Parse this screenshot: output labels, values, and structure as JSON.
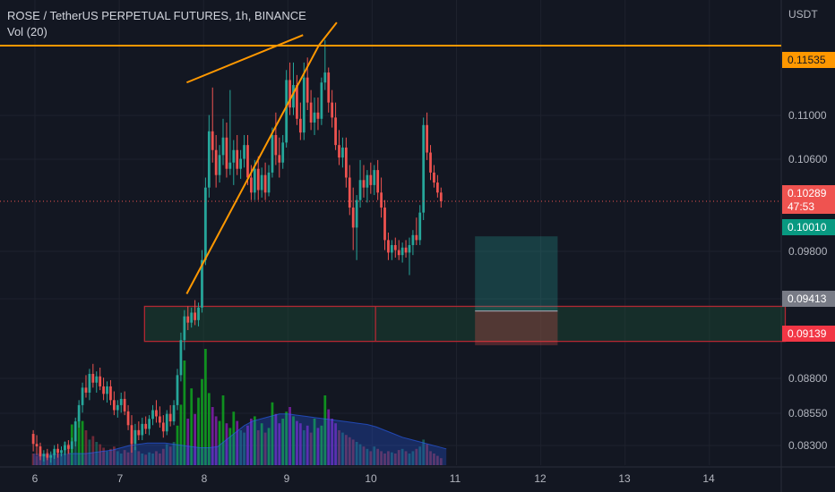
{
  "header": {
    "symbol_line": "ROSE / TetherUS PERPETUAL FUTURES, 1h, BINANCE",
    "indicator_line": "Vol (20)"
  },
  "axis": {
    "currency": "USDT",
    "price_ticks": [
      "0.11000",
      "0.10600",
      "0.09800",
      "0.09413",
      "0.08800",
      "0.08550",
      "0.08300"
    ],
    "date_ticks": [
      "6",
      "7",
      "8",
      "9",
      "10",
      "11",
      "12",
      "13",
      "14"
    ]
  },
  "price_labels": {
    "resistance": "0.11535",
    "current": "0.10289",
    "countdown": "47:53",
    "target": "0.10010",
    "entry": "0.09413",
    "stop": "0.09139"
  },
  "colors": {
    "background": "#131722",
    "up": "#26a69a",
    "down": "#ef5350",
    "drawing": "#ff9800",
    "zone": "#b22833",
    "volume_ma": "#2962ff",
    "volume_up_high": "#0f9d1f",
    "volume_down_high": "#7b1fa2"
  },
  "chart_data": {
    "type": "candlestick",
    "interval": "1h",
    "x_start_day": 5.98,
    "x_step_days": 0.0417,
    "ylim": [
      0.0818,
      0.119
    ],
    "ohlc": [
      [
        0.0843,
        0.0846,
        0.0829,
        0.0835
      ],
      [
        0.0835,
        0.0842,
        0.0826,
        0.0833
      ],
      [
        0.0833,
        0.0836,
        0.0822,
        0.0825
      ],
      [
        0.0825,
        0.083,
        0.0821,
        0.0827
      ],
      [
        0.0827,
        0.0831,
        0.0822,
        0.0824
      ],
      [
        0.0824,
        0.0829,
        0.082,
        0.0826
      ],
      [
        0.0826,
        0.0834,
        0.0823,
        0.0831
      ],
      [
        0.0831,
        0.0835,
        0.0824,
        0.0828
      ],
      [
        0.0828,
        0.0833,
        0.0825,
        0.083
      ],
      [
        0.083,
        0.0837,
        0.0826,
        0.0834
      ],
      [
        0.0834,
        0.0838,
        0.0827,
        0.0831
      ],
      [
        0.0831,
        0.084,
        0.0828,
        0.0837
      ],
      [
        0.0837,
        0.0856,
        0.0833,
        0.0853
      ],
      [
        0.0853,
        0.087,
        0.0848,
        0.0866
      ],
      [
        0.0866,
        0.0884,
        0.086,
        0.088
      ],
      [
        0.088,
        0.089,
        0.0872,
        0.0876
      ],
      [
        0.0876,
        0.0895,
        0.087,
        0.0891
      ],
      [
        0.0891,
        0.0899,
        0.088,
        0.0884
      ],
      [
        0.0884,
        0.0893,
        0.0876,
        0.0889
      ],
      [
        0.0889,
        0.0896,
        0.0878,
        0.0881
      ],
      [
        0.0881,
        0.0888,
        0.087,
        0.0875
      ],
      [
        0.0875,
        0.0885,
        0.0868,
        0.0881
      ],
      [
        0.0881,
        0.0886,
        0.0866,
        0.087
      ],
      [
        0.087,
        0.0877,
        0.0858,
        0.0862
      ],
      [
        0.0862,
        0.087,
        0.0856,
        0.0866
      ],
      [
        0.0866,
        0.0876,
        0.086,
        0.0871
      ],
      [
        0.0871,
        0.0877,
        0.0858,
        0.0861
      ],
      [
        0.0861,
        0.0866,
        0.0846,
        0.085
      ],
      [
        0.085,
        0.0858,
        0.0828,
        0.0835
      ],
      [
        0.0835,
        0.0851,
        0.083,
        0.0846
      ],
      [
        0.0846,
        0.0853,
        0.0838,
        0.0842
      ],
      [
        0.0842,
        0.0856,
        0.0838,
        0.0851
      ],
      [
        0.0851,
        0.0857,
        0.0843,
        0.0847
      ],
      [
        0.0847,
        0.0858,
        0.0842,
        0.0855
      ],
      [
        0.0855,
        0.0866,
        0.085,
        0.0862
      ],
      [
        0.0862,
        0.087,
        0.0852,
        0.0857
      ],
      [
        0.0857,
        0.0865,
        0.0848,
        0.0852
      ],
      [
        0.0852,
        0.0858,
        0.084,
        0.0845
      ],
      [
        0.0845,
        0.0862,
        0.0842,
        0.0859
      ],
      [
        0.0859,
        0.0866,
        0.0849,
        0.0853
      ],
      [
        0.0853,
        0.087,
        0.085,
        0.0866
      ],
      [
        0.0866,
        0.0895,
        0.0862,
        0.089
      ],
      [
        0.089,
        0.0924,
        0.0885,
        0.0918
      ],
      [
        0.0918,
        0.0942,
        0.091,
        0.0937
      ],
      [
        0.0937,
        0.0945,
        0.0926,
        0.0932
      ],
      [
        0.0932,
        0.0944,
        0.0928,
        0.094
      ],
      [
        0.094,
        0.095,
        0.093,
        0.0934
      ],
      [
        0.0934,
        0.0948,
        0.0929,
        0.0944
      ],
      [
        0.0944,
        0.099,
        0.094,
        0.0982
      ],
      [
        0.0982,
        0.1048,
        0.0978,
        0.104
      ],
      [
        0.104,
        0.1098,
        0.1032,
        0.1085
      ],
      [
        0.1085,
        0.112,
        0.106,
        0.107
      ],
      [
        0.107,
        0.1082,
        0.104,
        0.105
      ],
      [
        0.105,
        0.1074,
        0.1044,
        0.1066
      ],
      [
        0.1066,
        0.1095,
        0.1058,
        0.108
      ],
      [
        0.108,
        0.1092,
        0.1048,
        0.1055
      ],
      [
        0.1055,
        0.1118,
        0.105,
        0.106
      ],
      [
        0.106,
        0.1078,
        0.1042,
        0.107
      ],
      [
        0.107,
        0.1082,
        0.105,
        0.1055
      ],
      [
        0.1055,
        0.107,
        0.1047,
        0.1063
      ],
      [
        0.1063,
        0.1082,
        0.1056,
        0.1074
      ],
      [
        0.1074,
        0.1082,
        0.1042,
        0.1048
      ],
      [
        0.1048,
        0.1058,
        0.103,
        0.1036
      ],
      [
        0.1036,
        0.1062,
        0.103,
        0.1055
      ],
      [
        0.1055,
        0.1065,
        0.103,
        0.1038
      ],
      [
        0.1038,
        0.1056,
        0.1032,
        0.105
      ],
      [
        0.105,
        0.106,
        0.103,
        0.1036
      ],
      [
        0.1036,
        0.1058,
        0.1033,
        0.1052
      ],
      [
        0.1052,
        0.1088,
        0.1048,
        0.1082
      ],
      [
        0.1082,
        0.11,
        0.1058,
        0.1066
      ],
      [
        0.1066,
        0.108,
        0.1048,
        0.106
      ],
      [
        0.106,
        0.1082,
        0.1055,
        0.1076
      ],
      [
        0.1076,
        0.1134,
        0.1072,
        0.1126
      ],
      [
        0.1126,
        0.114,
        0.1098,
        0.1104
      ],
      [
        0.1104,
        0.114,
        0.1098,
        0.1122
      ],
      [
        0.1122,
        0.113,
        0.109,
        0.1095
      ],
      [
        0.1095,
        0.1108,
        0.1078,
        0.1084
      ],
      [
        0.1084,
        0.114,
        0.1078,
        0.1128
      ],
      [
        0.1128,
        0.1144,
        0.1102,
        0.1108
      ],
      [
        0.1108,
        0.1118,
        0.1086,
        0.1092
      ],
      [
        0.1092,
        0.1112,
        0.1082,
        0.11
      ],
      [
        0.11,
        0.1112,
        0.1086,
        0.1095
      ],
      [
        0.1095,
        0.1128,
        0.109,
        0.1124
      ],
      [
        0.1124,
        0.1158,
        0.1118,
        0.1132
      ],
      [
        0.1132,
        0.1136,
        0.11,
        0.1108
      ],
      [
        0.1108,
        0.1118,
        0.1088,
        0.1096
      ],
      [
        0.1096,
        0.1108,
        0.107,
        0.1074
      ],
      [
        0.1074,
        0.1086,
        0.1058,
        0.1064
      ],
      [
        0.1064,
        0.108,
        0.1056,
        0.1072
      ],
      [
        0.1072,
        0.108,
        0.104,
        0.1048
      ],
      [
        0.1048,
        0.1058,
        0.1018,
        0.1024
      ],
      [
        0.1024,
        0.104,
        0.099,
        0.1008
      ],
      [
        0.1008,
        0.1034,
        0.0982,
        0.103
      ],
      [
        0.103,
        0.1062,
        0.1024,
        0.1046
      ],
      [
        0.1046,
        0.1058,
        0.1032,
        0.104
      ],
      [
        0.104,
        0.1054,
        0.1028,
        0.105
      ],
      [
        0.105,
        0.106,
        0.1035,
        0.1042
      ],
      [
        0.1042,
        0.1058,
        0.1034,
        0.1054
      ],
      [
        0.1054,
        0.1062,
        0.103,
        0.1036
      ],
      [
        0.1036,
        0.1048,
        0.1016,
        0.1024
      ],
      [
        0.1024,
        0.103,
        0.099,
        0.0998
      ],
      [
        0.0998,
        0.1004,
        0.0982,
        0.0988
      ],
      [
        0.0988,
        0.0998,
        0.0982,
        0.0994
      ],
      [
        0.0994,
        0.1,
        0.0984,
        0.099
      ],
      [
        0.099,
        0.0998,
        0.0982,
        0.0986
      ],
      [
        0.0986,
        0.0996,
        0.098,
        0.0992
      ],
      [
        0.0992,
        0.0998,
        0.0984,
        0.0988
      ],
      [
        0.0988,
        0.1,
        0.097,
        0.0994
      ],
      [
        0.0994,
        0.1006,
        0.0986,
        0.1002
      ],
      [
        0.1002,
        0.1016,
        0.0994,
        0.0998
      ],
      [
        0.0998,
        0.1026,
        0.0994,
        0.102
      ],
      [
        0.102,
        0.1096,
        0.1014,
        0.109
      ],
      [
        0.109,
        0.11,
        0.1062,
        0.1068
      ],
      [
        0.1068,
        0.1074,
        0.1046,
        0.1052
      ],
      [
        0.1052,
        0.1058,
        0.104,
        0.1044
      ],
      [
        0.1044,
        0.105,
        0.1032,
        0.1036
      ],
      [
        0.1036,
        0.104,
        0.1024,
        0.1029
      ]
    ],
    "volume_levels": [
      0.1,
      0.08,
      0.12,
      0.09,
      0.11,
      0.08,
      0.1,
      0.14,
      0.12,
      0.2,
      0.18,
      0.35,
      0.3,
      0.42,
      0.38,
      0.3,
      0.22,
      0.25,
      0.2,
      0.18,
      0.15,
      0.12,
      0.14,
      0.16,
      0.12,
      0.1,
      0.13,
      0.11,
      0.24,
      0.16,
      0.12,
      0.1,
      0.09,
      0.11,
      0.1,
      0.12,
      0.1,
      0.14,
      0.18,
      0.16,
      0.2,
      0.34,
      0.52,
      0.9,
      0.4,
      0.66,
      0.44,
      0.58,
      0.74,
      1.0,
      0.62,
      0.5,
      0.42,
      0.38,
      0.6,
      0.36,
      0.32,
      0.46,
      0.38,
      0.3,
      0.28,
      0.34,
      0.4,
      0.42,
      0.3,
      0.36,
      0.28,
      0.32,
      0.54,
      0.44,
      0.36,
      0.4,
      0.46,
      0.5,
      0.42,
      0.38,
      0.36,
      0.3,
      0.34,
      0.28,
      0.4,
      0.32,
      0.34,
      0.6,
      0.48,
      0.4,
      0.36,
      0.3,
      0.28,
      0.26,
      0.24,
      0.22,
      0.2,
      0.18,
      0.16,
      0.14,
      0.12,
      0.16,
      0.14,
      0.12,
      0.1,
      0.12,
      0.11,
      0.1,
      0.13,
      0.14,
      0.12,
      0.1,
      0.12,
      0.14,
      0.16,
      0.22,
      0.18,
      0.12,
      0.1,
      0.08,
      0.06
    ],
    "volume_ma_levels": [
      0.1,
      0.1,
      0.1,
      0.11,
      0.12,
      0.13,
      0.15,
      0.17,
      0.18,
      0.19,
      0.19,
      0.19,
      0.18,
      0.17,
      0.16,
      0.15,
      0.15,
      0.16,
      0.22,
      0.28,
      0.34,
      0.38,
      0.4,
      0.42,
      0.44,
      0.44,
      0.43,
      0.42,
      0.41,
      0.4,
      0.39,
      0.38,
      0.37,
      0.36,
      0.35,
      0.33,
      0.3,
      0.27,
      0.24,
      0.22,
      0.2,
      0.18,
      0.16,
      0.14
    ],
    "ma_start_index": 10,
    "ma_step": 2.5,
    "drawings": {
      "resistance_level": 0.11535,
      "wedge_upper": [
        [
          7.8,
          0.1124
        ],
        [
          9.18,
          0.1162
        ]
      ],
      "wedge_lower": [
        [
          7.8,
          0.0955
        ],
        [
          9.37,
          0.1154
        ]
      ],
      "wedge_extension": [
        [
          9.37,
          0.1154
        ],
        [
          9.58,
          0.1172
        ]
      ],
      "demand_zone": {
        "from_day": 7.3,
        "split_day": 10.04,
        "to_day": 14.9,
        "top": 0.0945,
        "bottom": 0.0917
      },
      "position": {
        "from_day": 11.22,
        "to_day": 12.2,
        "target": 0.1001,
        "entry": 0.09413,
        "stop": 0.09139
      }
    }
  }
}
